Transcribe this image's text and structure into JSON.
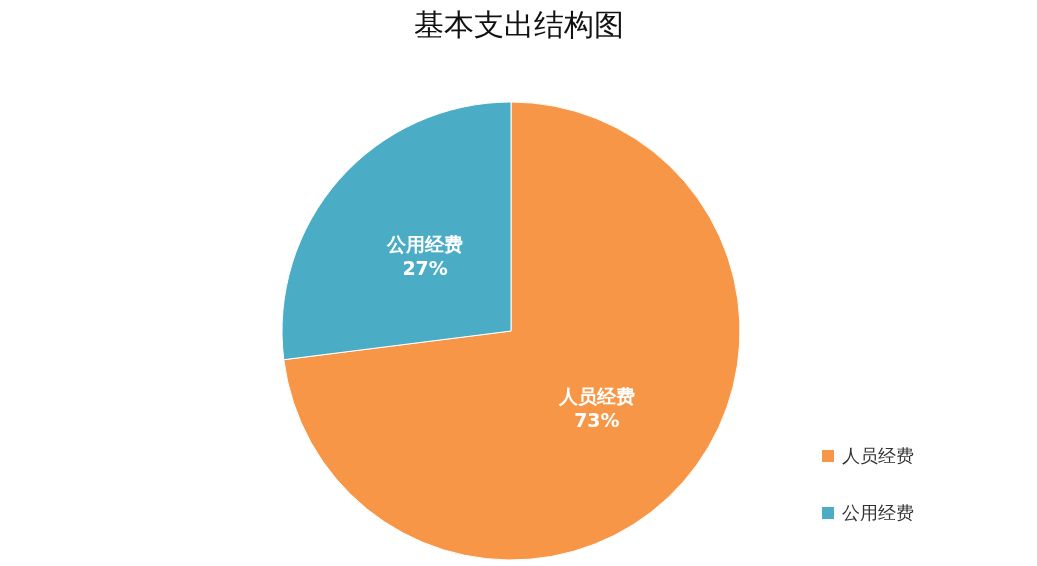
{
  "chart_data": {
    "type": "pie",
    "title": "基本支出结构图",
    "categories": [
      "人员经费",
      "公用经费"
    ],
    "values": [
      73,
      27
    ],
    "value_labels": [
      "73%",
      "27%"
    ],
    "colors": [
      "#f79646",
      "#4bacc6"
    ],
    "legend": "bottom right"
  }
}
